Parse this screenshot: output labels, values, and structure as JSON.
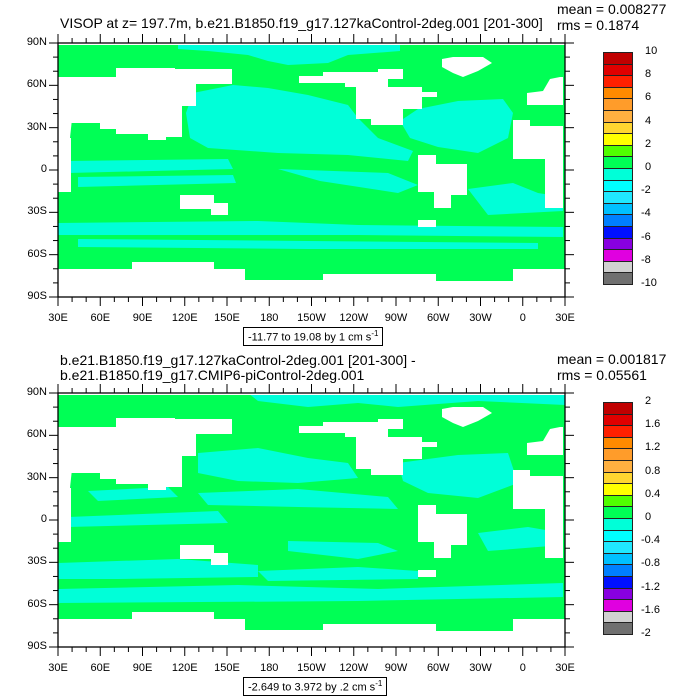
{
  "colors": {
    "land": "#ffffff",
    "green": "#00ff55",
    "cyan": "#00ffd8"
  },
  "axes": {
    "lat_labels": [
      "90N",
      "60N",
      "30N",
      "0",
      "30S",
      "60S",
      "90S"
    ],
    "lon_labels": [
      "30E",
      "60E",
      "90E",
      "120E",
      "150E",
      "180",
      "150W",
      "120W",
      "90W",
      "60W",
      "30W",
      "0",
      "30E"
    ]
  },
  "colorbar_colors": [
    "#c00000",
    "#e00000",
    "#ff2000",
    "#ff8a00",
    "#ff9c2a",
    "#ffb040",
    "#ffd530",
    "#ffff00",
    "#50ff00",
    "#00ff55",
    "#00ffd8",
    "#00ffff",
    "#20e8ff",
    "#00c0ff",
    "#0080ff",
    "#0010ff",
    "#8800e0",
    "#e000e0",
    "#d0d0d0",
    "#707070"
  ],
  "panels": [
    {
      "title": "VISOP at z= 197.7m, b.e21.B1850.f19_g17.127kaControl-2deg.001 [201-300]",
      "mean": "mean = 0.008277",
      "rms": "rms = 0.1874",
      "contour_info": "-11.77 to 19.08 by 1 cm s",
      "contour_info_sup": "-1",
      "colorbar_labels": [
        "10",
        "8",
        "6",
        "4",
        "2",
        "0",
        "-2",
        "-4",
        "-6",
        "-8",
        "-10"
      ]
    },
    {
      "title": "b.e21.B1850.f19_g17.127kaControl-2deg.001 [201-300] - b.e21.B1850.f19_g17.CMIP6-piControl-2deg.001",
      "mean": "mean = 0.001817",
      "rms": "rms = 0.05561",
      "contour_info": "-2.649 to 3.972 by .2 cm s",
      "contour_info_sup": "-1",
      "colorbar_labels": [
        "2",
        "1.6",
        "1.2",
        "0.8",
        "0.4",
        "0",
        "-0.4",
        "-0.8",
        "-1.2",
        "-1.6",
        "-2"
      ]
    }
  ]
}
